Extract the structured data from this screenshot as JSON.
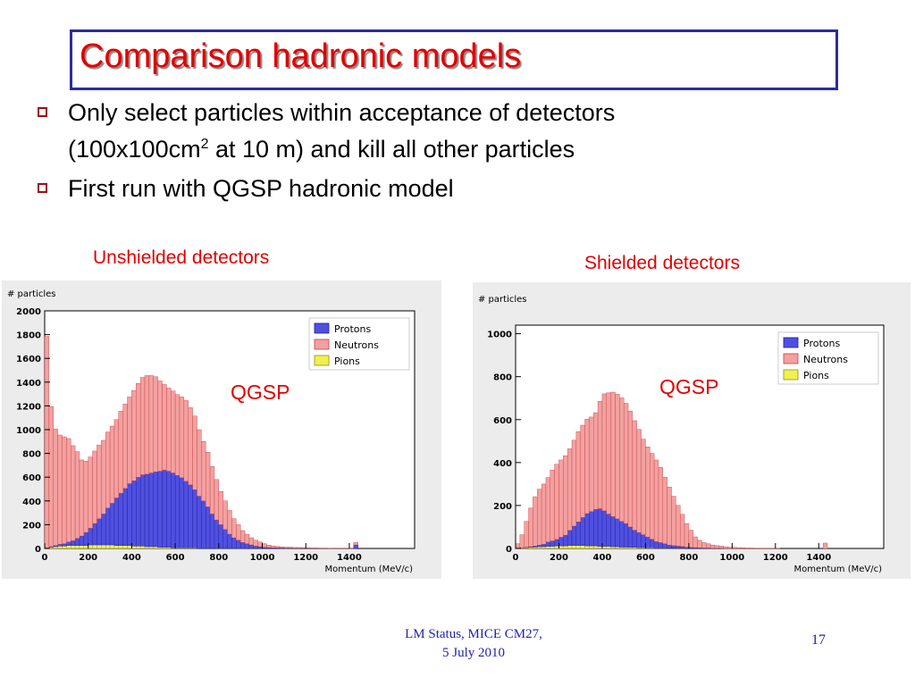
{
  "title": "Comparison hadronic models",
  "bullets": [
    {
      "line1": "Only select particles within acceptance of  detectors",
      "line2_pre": "(100x100cm",
      "line2_sup": "2",
      "line2_post": " at 10 m) and kill all other particles"
    },
    {
      "text": "First run with QGSP hadronic model"
    }
  ],
  "panels": {
    "left_label": "Unshielded detectors",
    "right_label": "Shielded detectors",
    "left_model": "QGSP",
    "right_model": "QGSP"
  },
  "footer": {
    "line1": "LM Status, MICE CM27,",
    "line2": "5 July 2010",
    "page": "17"
  },
  "colors": {
    "title": "#e00000",
    "protons": "#5050e0",
    "neutrons": "#f4a0a0",
    "pions": "#f0f050"
  },
  "chart_data": [
    {
      "type": "bar",
      "subtype": "stacked-histogram",
      "title": "Unshielded detectors",
      "ylabel": "# particles",
      "xlabel": "Momentum (MeV/c)",
      "xlim": [
        0,
        1700
      ],
      "ylim": [
        0,
        2000
      ],
      "xticks": [
        0,
        200,
        400,
        600,
        800,
        1000,
        1200,
        1400
      ],
      "yticks": [
        0,
        200,
        400,
        600,
        800,
        1000,
        1200,
        1400,
        1600,
        1800,
        2000
      ],
      "bin_width": 20,
      "bin_start": 0,
      "series": [
        {
          "name": "Pions",
          "values": [
            5,
            10,
            15,
            20,
            20,
            25,
            25,
            25,
            25,
            25,
            30,
            30,
            30,
            30,
            30,
            30,
            25,
            25,
            25,
            25,
            20,
            20,
            20,
            15,
            15,
            15,
            10,
            10,
            10,
            5,
            5,
            5,
            5,
            5,
            5,
            0,
            0,
            0,
            0,
            0,
            0,
            0,
            0,
            0,
            0,
            0,
            0,
            0,
            0,
            0,
            0,
            0,
            0,
            0,
            0,
            0,
            0,
            0,
            0,
            0,
            0,
            0,
            0,
            0,
            0,
            0,
            0,
            0,
            0,
            0,
            0,
            0,
            0,
            0,
            0,
            0,
            0,
            0,
            0,
            0,
            0,
            0,
            0,
            0,
            0
          ]
        },
        {
          "name": "Protons",
          "values": [
            0,
            5,
            10,
            15,
            20,
            30,
            40,
            60,
            80,
            110,
            140,
            180,
            220,
            260,
            310,
            350,
            400,
            440,
            480,
            520,
            550,
            580,
            600,
            610,
            620,
            630,
            640,
            650,
            640,
            630,
            610,
            590,
            560,
            530,
            490,
            440,
            400,
            350,
            290,
            240,
            200,
            160,
            120,
            90,
            70,
            50,
            40,
            30,
            20,
            15,
            10,
            8,
            6,
            5,
            4,
            3,
            3,
            2,
            2,
            2,
            1,
            1,
            1,
            1,
            1,
            0,
            0,
            0,
            0,
            0,
            0,
            30,
            0,
            0,
            0,
            0,
            0,
            0,
            0,
            0,
            0,
            0,
            0,
            0,
            0
          ]
        },
        {
          "name": "Neutrons",
          "values": [
            1780,
            1180,
            980,
            920,
            900,
            870,
            800,
            730,
            640,
            600,
            600,
            610,
            620,
            620,
            640,
            650,
            660,
            690,
            710,
            730,
            760,
            790,
            820,
            830,
            820,
            800,
            760,
            720,
            700,
            690,
            680,
            680,
            680,
            650,
            620,
            560,
            500,
            460,
            400,
            340,
            280,
            240,
            200,
            160,
            130,
            100,
            80,
            60,
            50,
            40,
            30,
            20,
            15,
            12,
            10,
            8,
            8,
            6,
            6,
            5,
            4,
            3,
            3,
            2,
            2,
            2,
            1,
            1,
            1,
            1,
            1,
            20,
            0,
            0,
            0,
            0,
            0,
            0,
            0,
            0,
            0,
            0,
            0,
            0,
            0
          ]
        }
      ],
      "legend": [
        "Protons",
        "Neutrons",
        "Pions"
      ],
      "legend_position": "top-right"
    },
    {
      "type": "bar",
      "subtype": "stacked-histogram",
      "title": "Shielded detectors",
      "ylabel": "# particles",
      "xlabel": "Momentum (MeV/c)",
      "xlim": [
        0,
        1700
      ],
      "ylim": [
        0,
        1040
      ],
      "xticks": [
        0,
        200,
        400,
        600,
        800,
        1000,
        1200,
        1400
      ],
      "yticks": [
        0,
        200,
        400,
        600,
        800,
        1000
      ],
      "bin_width": 20,
      "bin_start": 0,
      "series": [
        {
          "name": "Pions",
          "values": [
            2,
            3,
            4,
            5,
            6,
            8,
            8,
            10,
            10,
            12,
            12,
            12,
            14,
            14,
            14,
            14,
            12,
            12,
            12,
            10,
            10,
            10,
            8,
            8,
            6,
            6,
            5,
            5,
            4,
            4,
            3,
            3,
            2,
            2,
            2,
            1,
            1,
            1,
            1,
            0,
            0,
            0,
            0,
            0,
            0,
            0,
            0,
            0,
            0,
            0,
            0,
            0,
            0,
            0,
            0,
            0,
            0,
            0,
            0,
            0,
            0,
            0,
            0,
            0,
            0,
            0,
            0,
            0,
            0,
            0,
            0,
            0,
            0,
            0,
            0,
            0,
            0,
            0,
            0,
            0,
            0,
            0,
            0,
            0,
            0
          ]
        },
        {
          "name": "Protons",
          "values": [
            0,
            1,
            2,
            3,
            5,
            8,
            12,
            20,
            25,
            30,
            40,
            50,
            70,
            90,
            110,
            130,
            150,
            160,
            170,
            175,
            165,
            150,
            140,
            130,
            120,
            110,
            95,
            80,
            70,
            60,
            50,
            40,
            30,
            25,
            20,
            15,
            12,
            10,
            8,
            6,
            5,
            4,
            3,
            2,
            2,
            1,
            1,
            1,
            0,
            0,
            0,
            0,
            0,
            0,
            0,
            0,
            0,
            0,
            0,
            0,
            0,
            0,
            0,
            0,
            0,
            0,
            0,
            0,
            0,
            0,
            0,
            0,
            0,
            0,
            0,
            0,
            0,
            0,
            0,
            0,
            0,
            0,
            0,
            0,
            0
          ]
        },
        {
          "name": "Neutrons",
          "values": [
            20,
            60,
            120,
            180,
            230,
            260,
            280,
            300,
            330,
            350,
            360,
            370,
            380,
            400,
            420,
            430,
            440,
            440,
            450,
            500,
            545,
            565,
            580,
            580,
            575,
            560,
            540,
            510,
            480,
            445,
            420,
            400,
            380,
            350,
            310,
            270,
            230,
            190,
            150,
            110,
            80,
            50,
            35,
            25,
            20,
            15,
            12,
            10,
            8,
            6,
            5,
            4,
            3,
            2,
            2,
            1,
            1,
            1,
            1,
            1,
            1,
            0,
            0,
            0,
            0,
            0,
            0,
            0,
            0,
            0,
            0,
            25,
            0,
            0,
            0,
            0,
            0,
            0,
            0,
            0,
            0,
            0,
            0,
            0,
            0
          ]
        }
      ],
      "legend": [
        "Protons",
        "Neutrons",
        "Pions"
      ],
      "legend_position": "top-right"
    }
  ]
}
